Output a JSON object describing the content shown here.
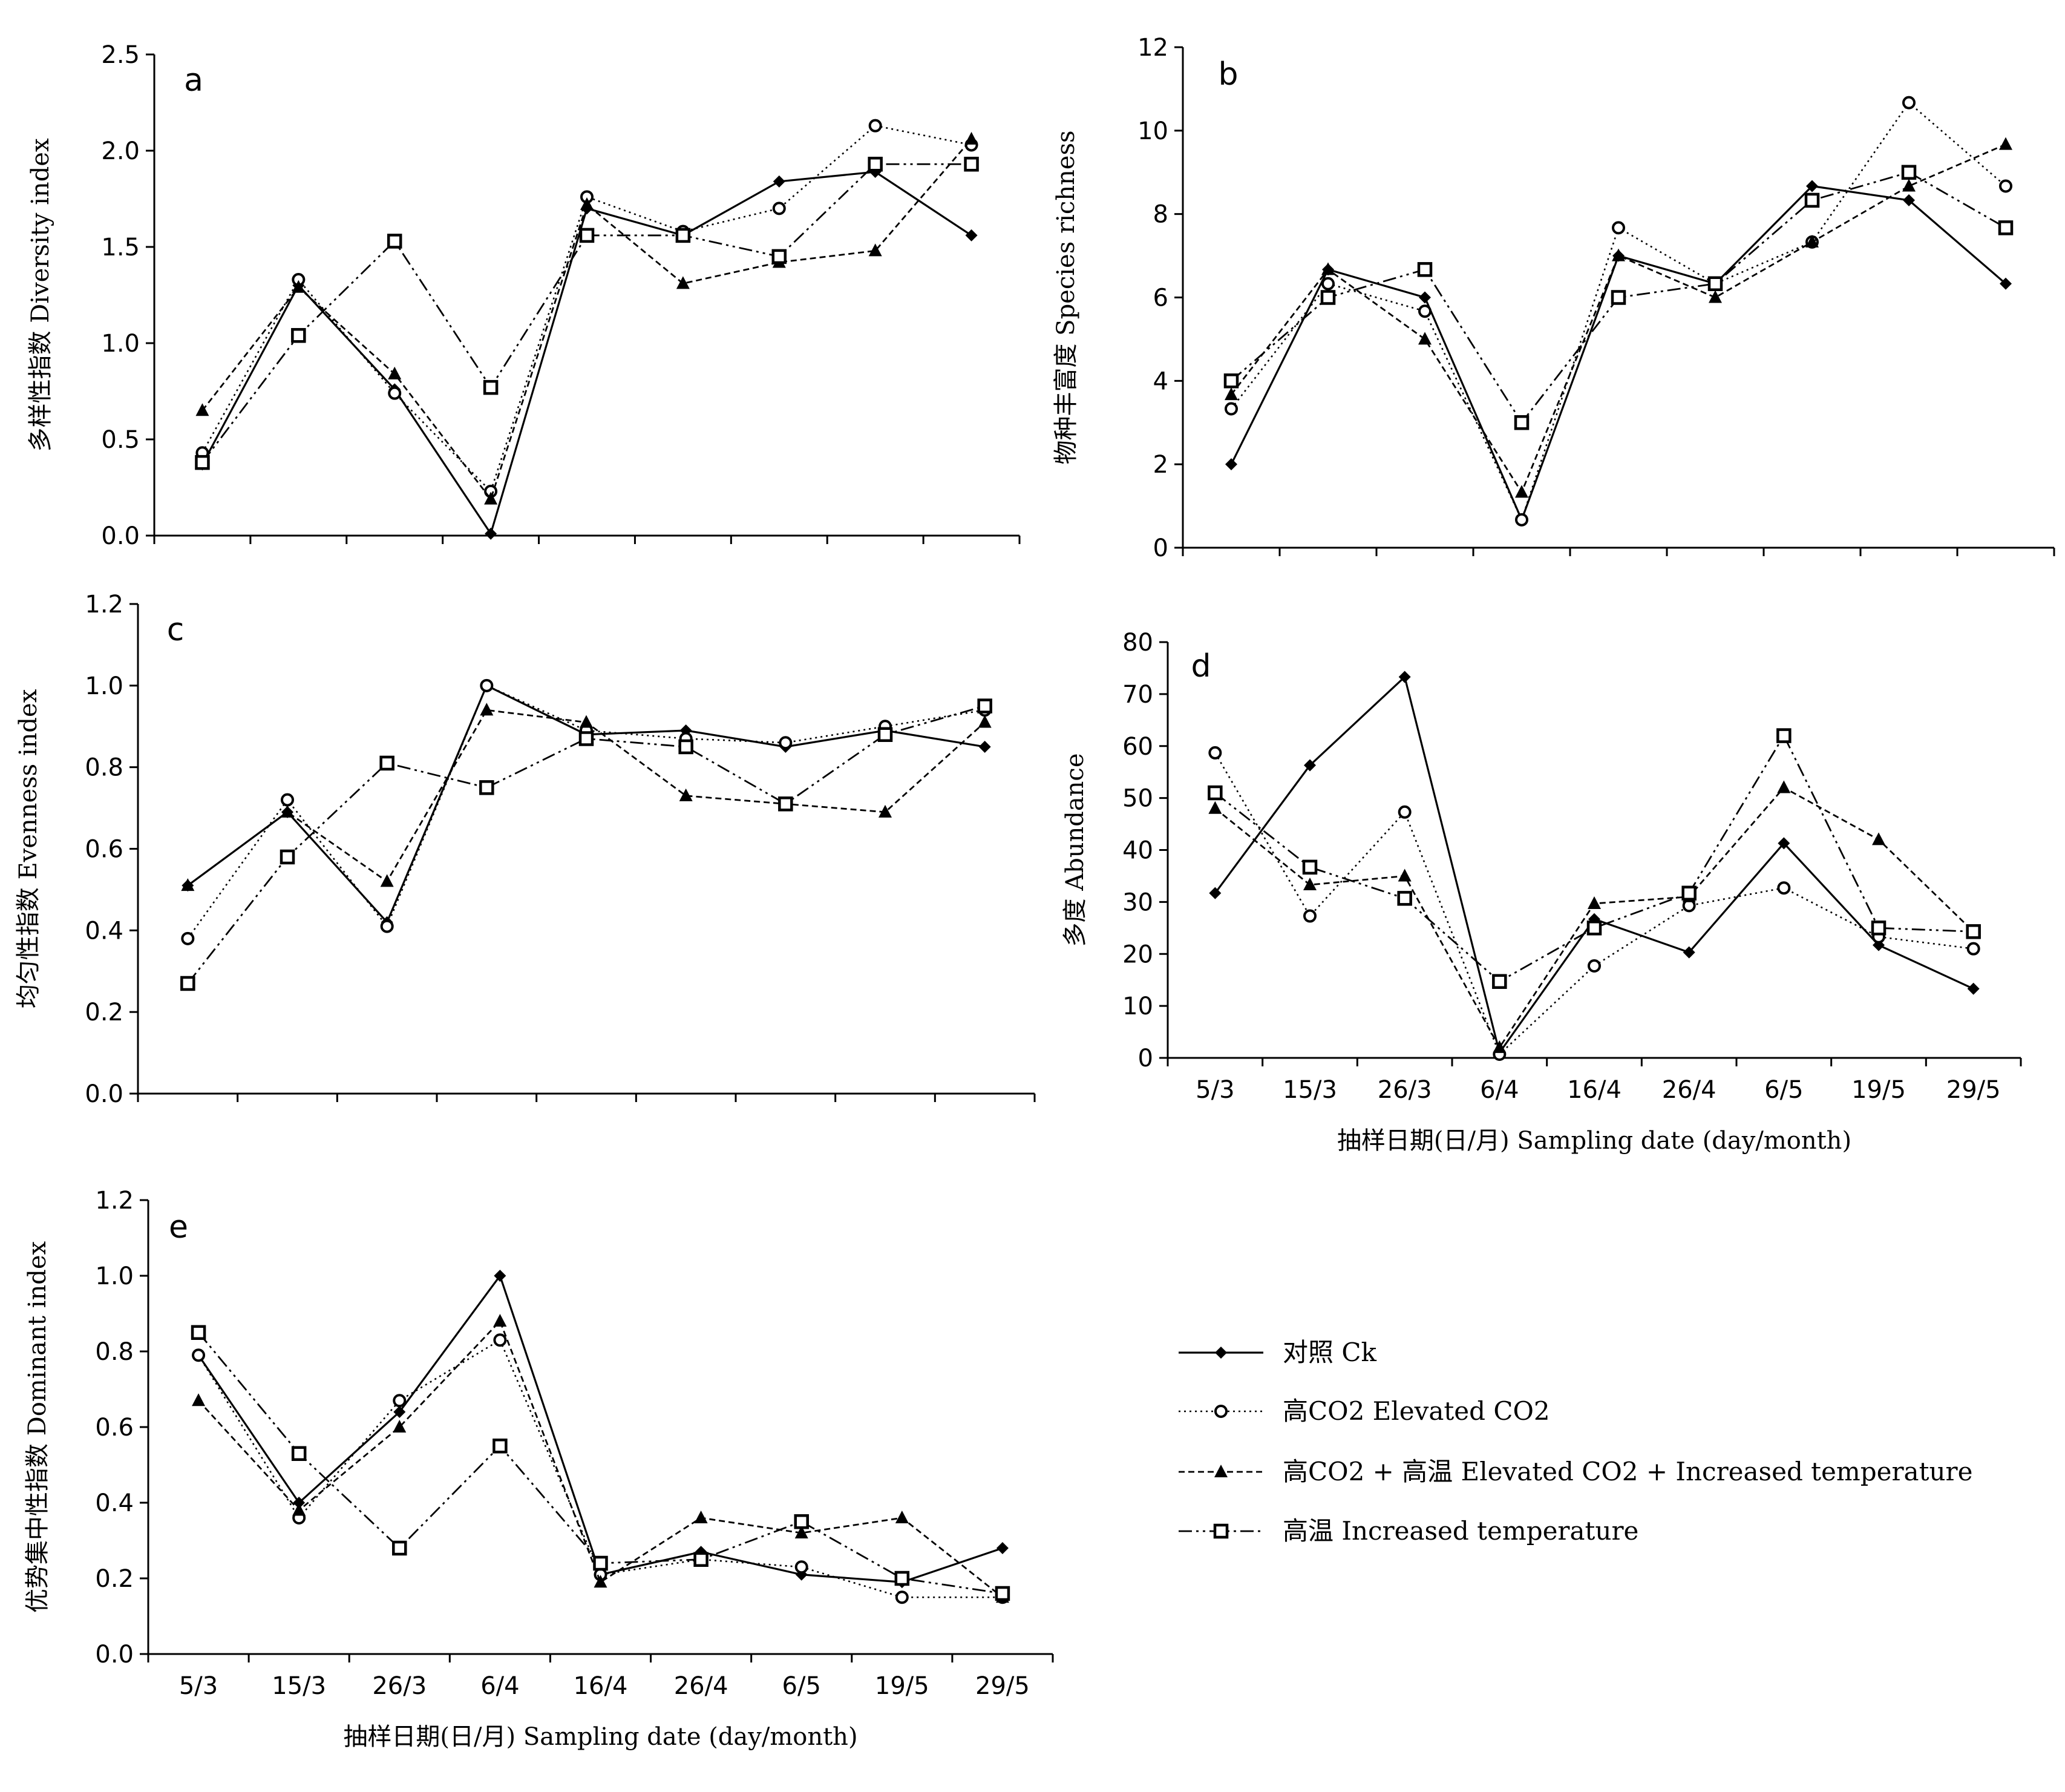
{
  "chart_data": [
    {
      "type": "line",
      "panel": "a",
      "ylabel": "多样性指数  Diversity index",
      "xlabel": "",
      "ylim": [
        0,
        2.5
      ],
      "yticks": [
        "0.0",
        "0.5",
        "1.0",
        "1.5",
        "2.0",
        "2.5"
      ],
      "categories": [
        "5/3",
        "15/3",
        "26/3",
        "6/4",
        "16/4",
        "26/4",
        "6/5",
        "19/5",
        "29/5"
      ],
      "show_xtick_labels": false,
      "series": [
        {
          "name": "对照 Ck",
          "values": [
            0.37,
            1.3,
            0.76,
            0.01,
            1.7,
            1.56,
            1.84,
            1.89,
            1.56
          ]
        },
        {
          "name": "高CO2  Elevated CO2",
          "values": [
            0.43,
            1.33,
            0.74,
            0.23,
            1.76,
            1.58,
            1.7,
            2.13,
            2.03
          ]
        },
        {
          "name": "高CO2 + 高温  Elevated CO2 + Increased temperature",
          "values": [
            0.65,
            1.29,
            0.84,
            0.19,
            1.72,
            1.31,
            1.42,
            1.48,
            2.06
          ]
        },
        {
          "name": "高温  Increased temperature",
          "values": [
            0.38,
            1.04,
            1.53,
            0.77,
            1.56,
            1.56,
            1.45,
            1.93,
            1.93
          ]
        }
      ]
    },
    {
      "type": "line",
      "panel": "b",
      "ylabel": "物种丰富度  Species richness",
      "xlabel": "",
      "ylim": [
        0,
        12
      ],
      "yticks": [
        "0",
        "2",
        "4",
        "6",
        "8",
        "10",
        "12"
      ],
      "categories": [
        "5/3",
        "15/3",
        "26/3",
        "6/4",
        "16/4",
        "26/4",
        "6/5",
        "19/5",
        "29/5"
      ],
      "show_xtick_labels": false,
      "series": [
        {
          "name": "对照 Ck",
          "values": [
            2.0,
            6.67,
            6.0,
            0.67,
            7.0,
            6.33,
            8.67,
            8.33,
            6.33
          ]
        },
        {
          "name": "高CO2  Elevated CO2",
          "values": [
            3.33,
            6.33,
            5.67,
            0.67,
            7.67,
            6.33,
            7.33,
            10.67,
            8.67
          ]
        },
        {
          "name": "高CO2 + 高温  Elevated CO2 + Increased temperature",
          "values": [
            3.67,
            6.67,
            5.0,
            1.33,
            7.0,
            6.0,
            7.33,
            8.67,
            9.67
          ]
        },
        {
          "name": "高温  Increased temperature",
          "values": [
            4.0,
            6.0,
            6.67,
            3.0,
            6.0,
            6.33,
            8.33,
            9.0,
            7.67
          ]
        }
      ]
    },
    {
      "type": "line",
      "panel": "c",
      "ylabel": "均匀性指数  Evenness index",
      "xlabel": "",
      "ylim": [
        0,
        1.2
      ],
      "yticks": [
        "0.0",
        "0.2",
        "0.4",
        "0.6",
        "0.8",
        "1.0",
        "1.2"
      ],
      "categories": [
        "5/3",
        "15/3",
        "26/3",
        "6/4",
        "16/4",
        "26/4",
        "6/5",
        "19/5",
        "29/5"
      ],
      "show_xtick_labels": false,
      "series": [
        {
          "name": "对照 Ck",
          "values": [
            0.51,
            0.69,
            0.42,
            1.0,
            0.88,
            0.89,
            0.85,
            0.89,
            0.85
          ]
        },
        {
          "name": "高CO2  Elevated CO2",
          "values": [
            0.38,
            0.72,
            0.41,
            1.0,
            0.89,
            0.87,
            0.86,
            0.9,
            0.94
          ]
        },
        {
          "name": "高CO2 + 高温  Elevated CO2 + Increased temperature",
          "values": [
            0.51,
            0.69,
            0.52,
            0.94,
            0.91,
            0.73,
            0.71,
            0.69,
            0.91
          ]
        },
        {
          "name": "高温  Increased temperature",
          "values": [
            0.27,
            0.58,
            0.81,
            0.75,
            0.87,
            0.85,
            0.71,
            0.88,
            0.95
          ]
        }
      ]
    },
    {
      "type": "line",
      "panel": "d",
      "ylabel": "多度  Abundance",
      "xlabel": "抽样日期(日/月)  Sampling date (day/month)",
      "ylim": [
        0,
        80
      ],
      "yticks": [
        "0",
        "10",
        "20",
        "30",
        "40",
        "50",
        "60",
        "70",
        "80"
      ],
      "categories": [
        "5/3",
        "15/3",
        "26/3",
        "6/4",
        "16/4",
        "26/4",
        "6/5",
        "19/5",
        "29/5"
      ],
      "show_xtick_labels": true,
      "series": [
        {
          "name": "对照 Ck",
          "values": [
            31.7,
            56.3,
            73.3,
            1.0,
            26.7,
            20.3,
            41.3,
            21.7,
            13.3
          ]
        },
        {
          "name": "高CO2  Elevated CO2",
          "values": [
            58.7,
            27.3,
            47.3,
            0.7,
            17.7,
            29.3,
            32.7,
            23.3,
            21.0
          ]
        },
        {
          "name": "高CO2 + 高温  Elevated CO2 + Increased temperature",
          "values": [
            48.0,
            33.3,
            35.0,
            2.0,
            29.7,
            31.0,
            52.0,
            42.0,
            24.3
          ]
        },
        {
          "name": "高温  Increased temperature",
          "values": [
            51.0,
            36.7,
            30.7,
            14.7,
            25.0,
            31.7,
            62.0,
            25.0,
            24.3
          ]
        }
      ]
    },
    {
      "type": "line",
      "panel": "e",
      "ylabel": "优势集中性指数  Dominant index",
      "xlabel": "抽样日期(日/月)  Sampling date (day/month)",
      "ylim": [
        0,
        1.2
      ],
      "yticks": [
        "0.0",
        "0.2",
        "0.4",
        "0.6",
        "0.8",
        "1.0",
        "1.2"
      ],
      "categories": [
        "5/3",
        "15/3",
        "26/3",
        "6/4",
        "16/4",
        "26/4",
        "6/5",
        "19/5",
        "29/5"
      ],
      "show_xtick_labels": true,
      "series": [
        {
          "name": "对照 Ck",
          "values": [
            0.79,
            0.4,
            0.64,
            1.0,
            0.21,
            0.27,
            0.21,
            0.19,
            0.28
          ]
        },
        {
          "name": "高CO2  Elevated CO2",
          "values": [
            0.79,
            0.36,
            0.67,
            0.83,
            0.21,
            0.25,
            0.23,
            0.15,
            0.15
          ]
        },
        {
          "name": "高CO2 + 高温  Elevated CO2 + Increased temperature",
          "values": [
            0.67,
            0.38,
            0.6,
            0.88,
            0.19,
            0.36,
            0.32,
            0.36,
            0.15
          ]
        },
        {
          "name": "高温  Increased temperature",
          "values": [
            0.85,
            0.53,
            0.28,
            0.55,
            0.24,
            0.25,
            0.35,
            0.2,
            0.16
          ]
        }
      ]
    }
  ],
  "legend": {
    "placement": "bottom-right",
    "items": [
      {
        "label": "对照 Ck",
        "marker": "diamond-filled",
        "dash": "solid"
      },
      {
        "label": "高CO2  Elevated CO2",
        "marker": "circle-open",
        "dash": "dotted"
      },
      {
        "label": "高CO2 + 高温  Elevated CO2 + Increased temperature",
        "marker": "triangle-filled",
        "dash": "dashed"
      },
      {
        "label": "高温  Increased temperature",
        "marker": "square-open",
        "dash": "dash-dot-dot"
      }
    ]
  }
}
